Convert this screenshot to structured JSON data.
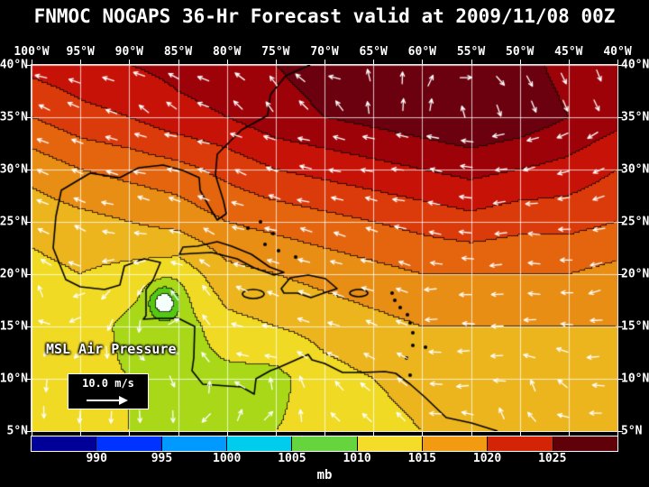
{
  "title": "FNMOC NOGAPS 36-Hr Forecast valid at 2009/11/08 00Z",
  "map": {
    "field_label": "MSL Air Pressure",
    "reference_vector": {
      "label": "10.0 m/s"
    },
    "lon_labels": [
      "100°W",
      "95°W",
      "90°W",
      "85°W",
      "80°W",
      "75°W",
      "70°W",
      "65°W",
      "60°W",
      "55°W",
      "50°W",
      "45°W",
      "40°W"
    ],
    "lat_labels": [
      "40°N",
      "35°N",
      "30°N",
      "25°N",
      "20°N",
      "15°N",
      "10°N",
      "5°N"
    ]
  },
  "colorbar": {
    "units_label": "mb",
    "tick_labels": [
      "990",
      "995",
      "1000",
      "1005",
      "1010",
      "1015",
      "1020",
      "1025"
    ],
    "cell_colors": [
      "#000099",
      "#0033FF",
      "#0099FF",
      "#00CCEE",
      "#66D43C",
      "#F5DC28",
      "#F29A12",
      "#D42408",
      "#600008"
    ]
  },
  "chart_data": {
    "type": "heatmap",
    "title": "FNMOC NOGAPS 36-Hr Forecast valid at 2009/11/08 00Z",
    "variable": "MSL Air Pressure",
    "units": "mb",
    "forecast_hours": 36,
    "valid_time": "2009/11/08 00Z",
    "lon_deg_east": [
      -100,
      -95,
      -90,
      -85,
      -80,
      -75,
      -70,
      -65,
      -60,
      -55,
      -50,
      -45,
      -40
    ],
    "lat_deg_north": [
      40,
      35,
      30,
      25,
      20,
      15,
      10,
      5
    ],
    "mslp_mb": [
      [
        1022,
        1023,
        1024,
        1025,
        1026,
        1027,
        1028,
        1028,
        1029,
        1029,
        1028,
        1026,
        1024
      ],
      [
        1018,
        1020,
        1021,
        1023,
        1024,
        1026,
        1027,
        1028,
        1029,
        1030,
        1029,
        1027,
        1025
      ],
      [
        1013,
        1015,
        1016,
        1017,
        1019,
        1021,
        1022,
        1023,
        1024,
        1025,
        1024,
        1023,
        1021
      ],
      [
        1010,
        1011,
        1012,
        1013,
        1015,
        1016,
        1017,
        1018,
        1019,
        1020,
        1019,
        1019,
        1018
      ],
      [
        1008,
        1009,
        1008,
        1007,
        1011,
        1012,
        1013,
        1014,
        1015,
        1015,
        1015,
        1015,
        1014
      ],
      [
        1008,
        1008,
        1005,
        1004,
        1008,
        1009,
        1010,
        1011,
        1012,
        1012,
        1012,
        1012,
        1012
      ],
      [
        1008,
        1007,
        1006,
        1005,
        1005,
        1005,
        1008,
        1009,
        1010,
        1010,
        1010,
        1011,
        1011
      ],
      [
        1008,
        1007,
        1006,
        1005,
        1005,
        1006,
        1007,
        1008,
        1009,
        1009,
        1010,
        1010,
        1010
      ]
    ],
    "low_center": {
      "lon": -86.4,
      "lat": 17.3,
      "depth_mb": 11,
      "radius_deg": 1.5
    },
    "wind_reference_ms": 10.0,
    "grid_lines_deg": 5,
    "fill_levels_mb": [
      998,
      1002,
      1006,
      1009,
      1012,
      1015,
      1018,
      1021,
      1024,
      1027,
      1030
    ],
    "fill_colors": [
      "#F4FFFB",
      "#55C814",
      "#A8D818",
      "#F0DA24",
      "#ECB51E",
      "#E98E14",
      "#E4650D",
      "#DB3A0A",
      "#C71207",
      "#9C0208",
      "#6B000E",
      "#40020E"
    ],
    "colorbar_tick_values": [
      990,
      995,
      1000,
      1005,
      1010,
      1015,
      1020,
      1025
    ],
    "legend_position": "bottom"
  }
}
